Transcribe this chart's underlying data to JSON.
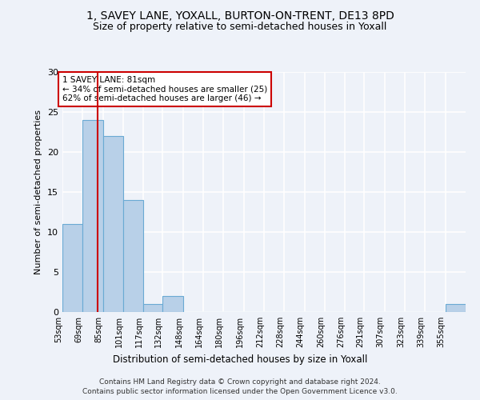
{
  "title": "1, SAVEY LANE, YOXALL, BURTON-ON-TRENT, DE13 8PD",
  "subtitle": "Size of property relative to semi-detached houses in Yoxall",
  "xlabel": "Distribution of semi-detached houses by size in Yoxall",
  "ylabel": "Number of semi-detached properties",
  "bin_edges": [
    53,
    69,
    85,
    101,
    117,
    132,
    148,
    164,
    180,
    196,
    212,
    228,
    244,
    260,
    276,
    291,
    307,
    323,
    339,
    355,
    371
  ],
  "counts": [
    11,
    24,
    22,
    14,
    1,
    2,
    0,
    0,
    0,
    0,
    0,
    0,
    0,
    0,
    0,
    0,
    0,
    0,
    0,
    1
  ],
  "bar_color": "#b8d0e8",
  "bar_edge_color": "#6aaad4",
  "property_line_x": 81,
  "property_line_color": "#cc0000",
  "annotation_text": "1 SAVEY LANE: 81sqm\n← 34% of semi-detached houses are smaller (25)\n62% of semi-detached houses are larger (46) →",
  "annotation_box_color": "#cc0000",
  "ylim": [
    0,
    30
  ],
  "yticks": [
    0,
    5,
    10,
    15,
    20,
    25,
    30
  ],
  "footer_line1": "Contains HM Land Registry data © Crown copyright and database right 2024.",
  "footer_line2": "Contains public sector information licensed under the Open Government Licence v3.0.",
  "background_color": "#eef2f9",
  "grid_color": "#ffffff",
  "title_fontsize": 10,
  "subtitle_fontsize": 9
}
